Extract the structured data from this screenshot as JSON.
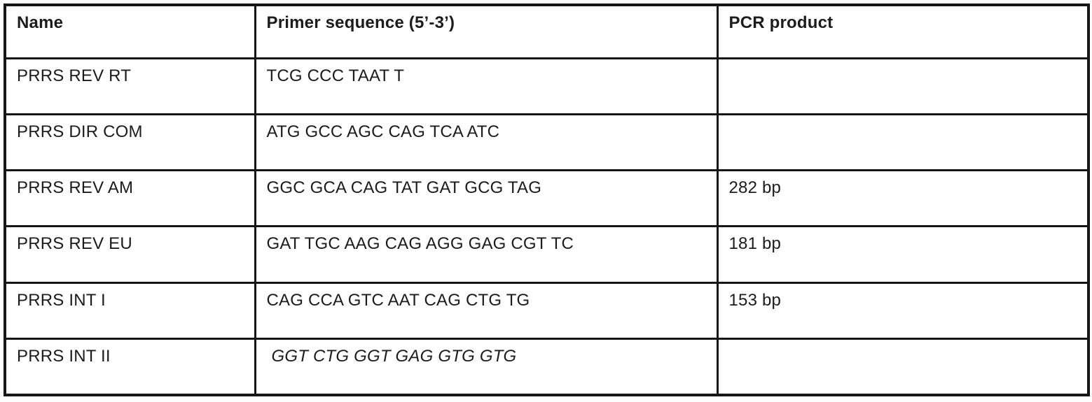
{
  "table": {
    "title": "PCR primer table",
    "colors": {
      "border": "#161616",
      "text": "#1c1c1c",
      "background": "#ffffff"
    },
    "columns": {
      "name": "Name",
      "sequence": "Primer sequence (5’-3’)",
      "pcr_product": "PCR product"
    },
    "rows": [
      {
        "name": "PRRS REV RT",
        "sequence": "TCG CCC TAAT T",
        "pcr_product": "",
        "sequence_style": "normal"
      },
      {
        "name": "PRRS DIR COM",
        "sequence": "ATG GCC AGC CAG TCA ATC",
        "pcr_product": "",
        "sequence_style": "normal"
      },
      {
        "name": "PRRS REV AM",
        "sequence": "GGC GCA CAG TAT GAT GCG TAG",
        "pcr_product": "282 bp",
        "sequence_style": "normal"
      },
      {
        "name": "PRRS REV EU",
        "sequence": "GAT TGC AAG CAG AGG GAG CGT TC",
        "pcr_product": "181 bp",
        "sequence_style": "normal"
      },
      {
        "name": "PRRS INT I",
        "sequence": "CAG CCA GTC AAT CAG CTG TG",
        "pcr_product": "153 bp",
        "sequence_style": "normal"
      },
      {
        "name": "PRRS INT II",
        "sequence": "GGT CTG GGT GAG GTG GTG",
        "pcr_product": "",
        "sequence_style": "italic"
      }
    ]
  }
}
